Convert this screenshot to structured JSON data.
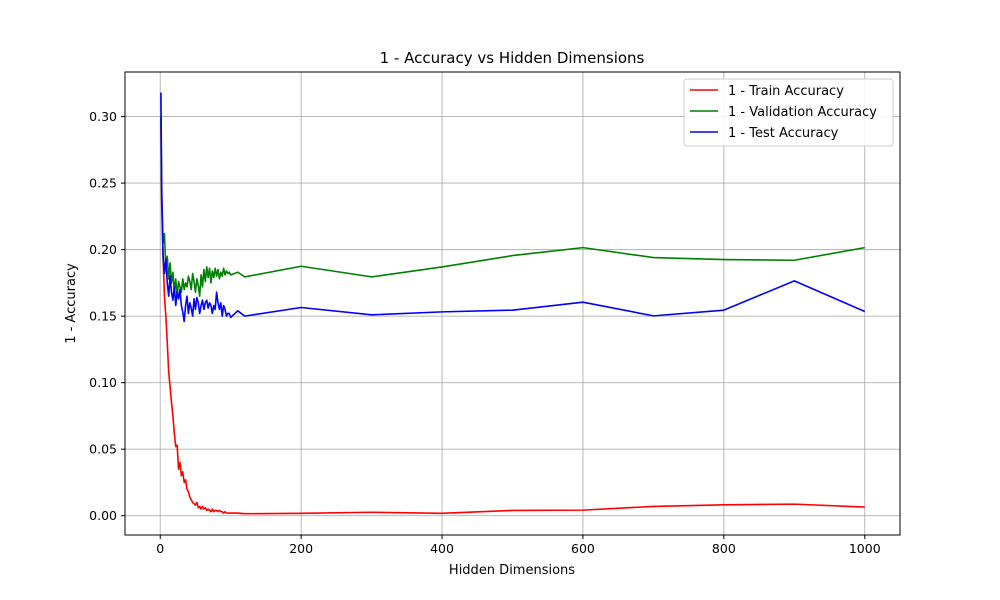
{
  "chart_data": {
    "type": "line",
    "title": "1 - Accuracy vs Hidden Dimensions",
    "xlabel": "Hidden Dimensions",
    "ylabel": "1 - Accuracy",
    "xlim": [
      -50,
      1050
    ],
    "ylim": [
      -0.0145,
      0.3335
    ],
    "xticks": [
      0,
      200,
      400,
      600,
      800,
      1000
    ],
    "xtick_labels": [
      "0",
      "200",
      "400",
      "600",
      "800",
      "1000"
    ],
    "yticks": [
      0.0,
      0.05,
      0.1,
      0.15,
      0.2,
      0.25,
      0.3
    ],
    "ytick_labels": [
      "0.00",
      "0.05",
      "0.10",
      "0.15",
      "0.20",
      "0.25",
      "0.30"
    ],
    "grid": true,
    "legend_position": "top-right",
    "x": [
      1,
      2,
      4,
      6,
      8,
      10,
      12,
      14,
      16,
      18,
      20,
      22,
      24,
      26,
      28,
      30,
      32,
      34,
      36,
      38,
      40,
      42,
      44,
      46,
      48,
      50,
      52,
      54,
      56,
      58,
      60,
      62,
      64,
      66,
      68,
      70,
      72,
      74,
      76,
      78,
      80,
      82,
      84,
      86,
      88,
      90,
      92,
      94,
      96,
      98,
      100,
      110,
      120,
      200,
      300,
      400,
      500,
      600,
      700,
      800,
      900,
      1000
    ],
    "series": [
      {
        "name": "1 - Train Accuracy",
        "color": "#ff0000",
        "values": [
          0.3,
          0.235,
          0.195,
          0.165,
          0.15,
          0.13,
          0.108,
          0.097,
          0.085,
          0.075,
          0.062,
          0.052,
          0.053,
          0.035,
          0.04,
          0.03,
          0.033,
          0.025,
          0.027,
          0.02,
          0.018,
          0.014,
          0.012,
          0.01,
          0.009,
          0.008,
          0.01,
          0.006,
          0.007,
          0.005,
          0.007,
          0.005,
          0.006,
          0.004,
          0.005,
          0.004,
          0.003,
          0.005,
          0.003,
          0.004,
          0.004,
          0.003,
          0.004,
          0.003,
          0.003,
          0.002,
          0.003,
          0.002,
          0.002,
          0.002,
          0.002,
          0.002,
          0.0015,
          0.0018,
          0.0026,
          0.0018,
          0.004,
          0.0042,
          0.007,
          0.0082,
          0.0087,
          0.0065
        ]
      },
      {
        "name": "1 - Validation Accuracy",
        "color": "#008000",
        "values": [
          0.3,
          0.24,
          0.205,
          0.212,
          0.185,
          0.195,
          0.178,
          0.19,
          0.175,
          0.183,
          0.168,
          0.178,
          0.165,
          0.176,
          0.172,
          0.168,
          0.178,
          0.17,
          0.175,
          0.172,
          0.18,
          0.176,
          0.17,
          0.182,
          0.176,
          0.168,
          0.178,
          0.173,
          0.165,
          0.181,
          0.172,
          0.185,
          0.176,
          0.187,
          0.179,
          0.186,
          0.175,
          0.184,
          0.179,
          0.186,
          0.18,
          0.185,
          0.178,
          0.183,
          0.18,
          0.186,
          0.181,
          0.184,
          0.182,
          0.183,
          0.181,
          0.183,
          0.1795,
          0.1875,
          0.1795,
          0.187,
          0.1955,
          0.2015,
          0.194,
          0.1925,
          0.192,
          0.2015
        ]
      },
      {
        "name": "1 - Test Accuracy",
        "color": "#0000ff",
        "values": [
          0.318,
          0.25,
          0.195,
          0.182,
          0.193,
          0.175,
          0.165,
          0.18,
          0.168,
          0.162,
          0.172,
          0.158,
          0.168,
          0.163,
          0.17,
          0.158,
          0.153,
          0.146,
          0.158,
          0.165,
          0.152,
          0.16,
          0.156,
          0.15,
          0.163,
          0.155,
          0.164,
          0.16,
          0.152,
          0.158,
          0.162,
          0.155,
          0.16,
          0.162,
          0.156,
          0.16,
          0.158,
          0.152,
          0.158,
          0.155,
          0.168,
          0.16,
          0.155,
          0.16,
          0.15,
          0.158,
          0.155,
          0.15,
          0.152,
          0.152,
          0.149,
          0.154,
          0.15,
          0.1565,
          0.151,
          0.1532,
          0.1545,
          0.1605,
          0.1502,
          0.1545,
          0.1765,
          0.1535
        ]
      }
    ]
  }
}
